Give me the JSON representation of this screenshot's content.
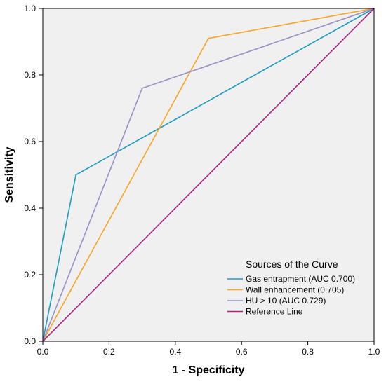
{
  "chart_data": {
    "type": "line",
    "title": "",
    "xlabel": "1 - Specificity",
    "ylabel": "Sensitivity",
    "xlim": [
      0,
      1
    ],
    "ylim": [
      0,
      1
    ],
    "x_ticks": [
      "0.0",
      "0.2",
      "0.4",
      "0.6",
      "0.8",
      "1.0"
    ],
    "y_ticks": [
      "0.0",
      "0.2",
      "0.4",
      "0.6",
      "0.8",
      "1.0"
    ],
    "grid": false,
    "background_color": "#f0f0f0",
    "legend": {
      "title": "Sources of the Curve",
      "placement": "bottom-right"
    },
    "series": [
      {
        "name": "Gas entrapment (AUC 0.700)",
        "color": "#1a9bbf",
        "x": [
          0.0,
          0.1,
          1.0
        ],
        "y": [
          0.0,
          0.5,
          1.0
        ]
      },
      {
        "name": "Wall enhancement (0.705)",
        "color": "#f5a623",
        "x": [
          0.0,
          0.5,
          1.0
        ],
        "y": [
          0.0,
          0.91,
          1.0
        ]
      },
      {
        "name": "HU > 10 (AUC 0.729)",
        "color": "#9b8fc6",
        "x": [
          0.0,
          0.3,
          1.0
        ],
        "y": [
          0.0,
          0.76,
          1.0
        ]
      },
      {
        "name": "Reference Line",
        "color": "#a8247e",
        "x": [
          0.0,
          1.0
        ],
        "y": [
          0.0,
          1.0
        ]
      }
    ]
  }
}
